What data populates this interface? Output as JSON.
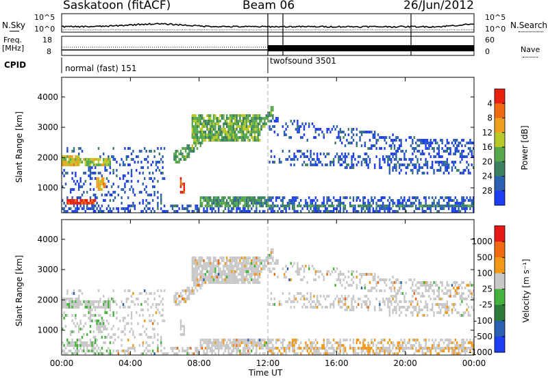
{
  "header": {
    "station": "Saskatoon (fitACF)",
    "beam": "Beam 06",
    "date": "26/Jun/2012"
  },
  "side_labels": {
    "nsky": "N.Sky",
    "nsearch": "N.Search",
    "freq_line1": "Freq.",
    "freq_line2": "[MHz]",
    "nave": "Nave",
    "cpid": "CPID",
    "nsky_ticks": [
      "10^5",
      "10^0"
    ],
    "nsearch_ticks": [
      "10^5",
      "10^0"
    ],
    "freq_ticks": [
      "18",
      "8"
    ],
    "nave_ticks": [
      "60",
      "0"
    ]
  },
  "cpid_labels": [
    "normal (fast) 151",
    "twofsound 3501"
  ],
  "chart_data": [
    {
      "type": "heatmap",
      "name": "power-panel",
      "ylabel": "Slant Range [km]",
      "xlabel": "",
      "x_range_hours": [
        0,
        24
      ],
      "ylim": [
        180,
        4650
      ],
      "yticks": [
        1000,
        2000,
        3000,
        4000
      ],
      "colorbar": {
        "label": "Power [dB]",
        "range": [
          0,
          32
        ],
        "ticks": [
          "4",
          "8",
          "12",
          "16",
          "20",
          "24",
          "28"
        ],
        "colors": [
          "#1f3ff2",
          "#2b5fb0",
          "#3b8060",
          "#56a84a",
          "#b8c828",
          "#f0a020",
          "#ef6a10",
          "#e82010"
        ]
      },
      "echo_regions": [
        {
          "x": [
            0.0,
            1.0
          ],
          "y": [
            1650,
            2000
          ],
          "level": 0.55
        },
        {
          "x": [
            1.0,
            2.8
          ],
          "y": [
            1650,
            1900
          ],
          "level": 0.45
        },
        {
          "x": [
            2.0,
            2.5
          ],
          "y": [
            900,
            1300
          ],
          "level": 0.6
        },
        {
          "x": [
            0.2,
            2.0
          ],
          "y": [
            400,
            600
          ],
          "level": 0.9
        },
        {
          "x": [
            6.8,
            7.1
          ],
          "y": [
            800,
            1300
          ],
          "level": 0.95
        },
        {
          "x": [
            7.5,
            11.5
          ],
          "y": [
            2500,
            3400
          ],
          "level": 0.35
        },
        {
          "x": [
            8.0,
            12.0
          ],
          "y": [
            300,
            700
          ],
          "level": 0.25
        },
        {
          "x": [
            12.0,
            24.0
          ],
          "y": [
            300,
            450
          ],
          "level": 0.2
        }
      ]
    },
    {
      "type": "heatmap",
      "name": "velocity-panel",
      "ylabel": "Slant Range [km]",
      "xlabel": "Time UT",
      "x_range_hours": [
        0,
        24
      ],
      "ylim": [
        180,
        4650
      ],
      "yticks": [
        1000,
        2000,
        3000,
        4000
      ],
      "xticks": [
        "00:00",
        "04:00",
        "08:00",
        "12:00",
        "16:00",
        "20:00",
        "00:00"
      ],
      "colorbar": {
        "label": "Velocity [m s⁻¹]",
        "ticks": [
          "1000",
          "500",
          "100",
          "25",
          "-25",
          "-100",
          "-500",
          "-1000"
        ],
        "colors": [
          "#1f3ff2",
          "#2b5fb0",
          "#2e7a3a",
          "#46b23e",
          "#c8c8c8",
          "#f29a18",
          "#ef6a10",
          "#e41818"
        ]
      }
    }
  ]
}
